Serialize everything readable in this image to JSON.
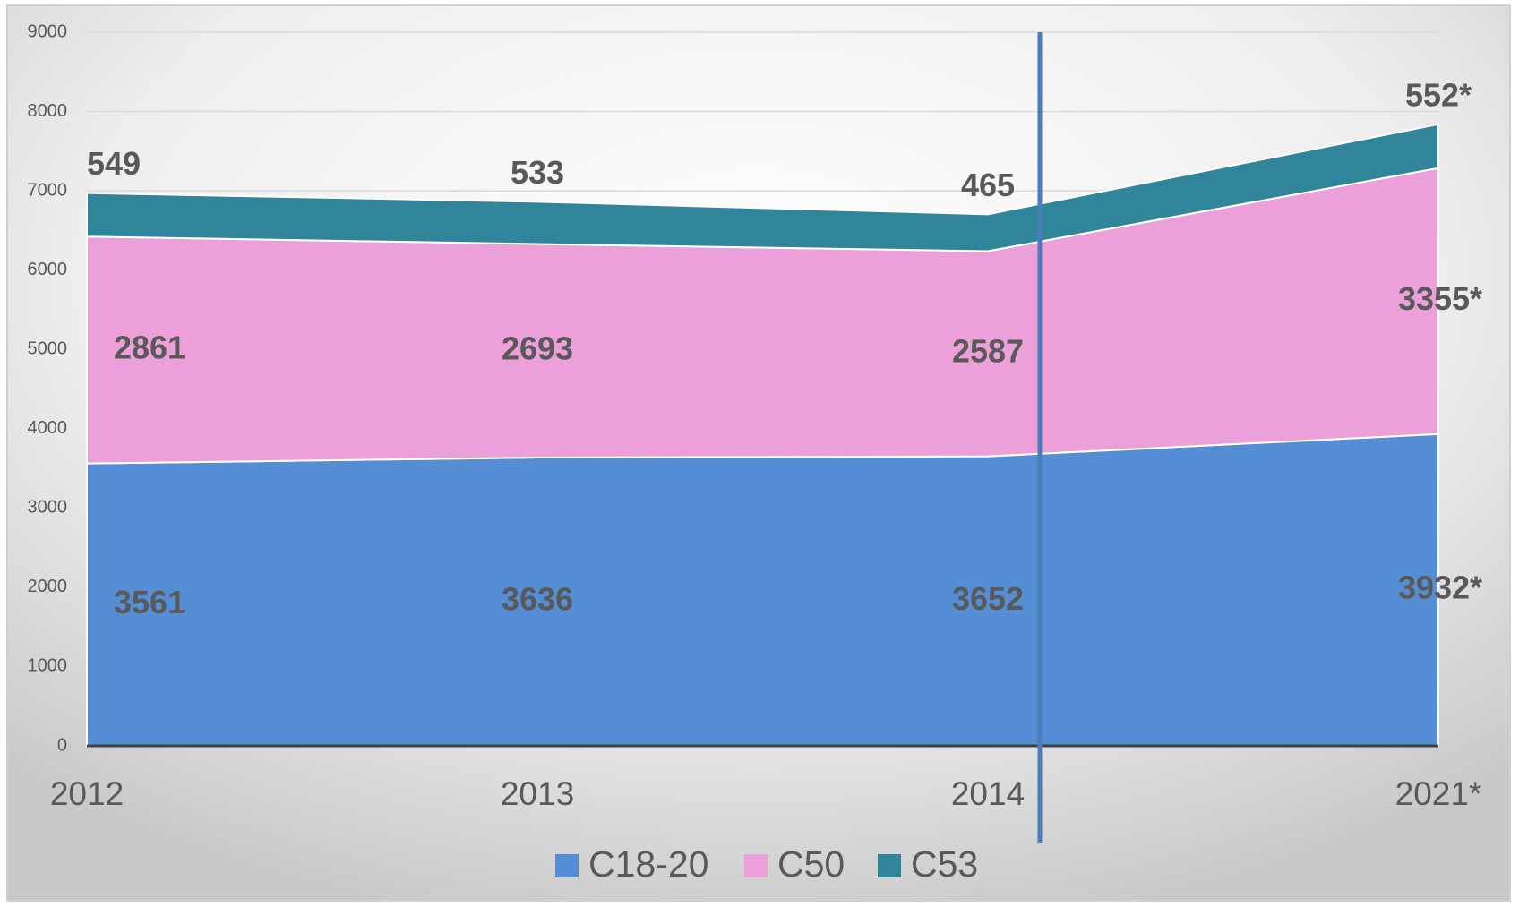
{
  "chart_data": {
    "type": "area",
    "categories": [
      "2012",
      "2013",
      "2014",
      "2021*"
    ],
    "series": [
      {
        "name": "C18-20",
        "color": "#558ed5",
        "values": [
          3561,
          3636,
          3652,
          3932
        ],
        "value_labels": [
          "3561",
          "3636",
          "3652",
          "3932*"
        ]
      },
      {
        "name": "C50",
        "color": "#eba0d9",
        "values": [
          2861,
          2693,
          2587,
          3355
        ],
        "value_labels": [
          "2861",
          "2693",
          "2587",
          "3355*"
        ]
      },
      {
        "name": "C53",
        "color": "#31859b",
        "values": [
          549,
          533,
          465,
          552
        ],
        "value_labels": [
          "549",
          "533",
          "465",
          "552*"
        ]
      }
    ],
    "stacked": true,
    "ylim": [
      0,
      9000
    ],
    "yticks": [
      0,
      1000,
      2000,
      3000,
      4000,
      5000,
      6000,
      7000,
      8000,
      9000
    ],
    "grid": true,
    "legend": "bottom"
  }
}
